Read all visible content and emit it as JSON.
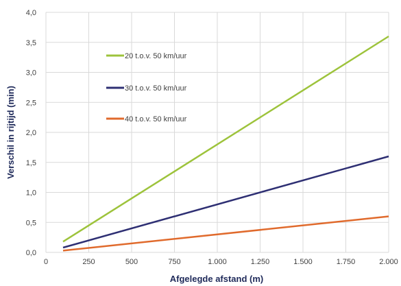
{
  "chart_data": {
    "type": "line",
    "xlabel": "Afgelegde afstand (m)",
    "ylabel": "Verschil in rijtijd  (min)",
    "xlim": [
      0,
      2000
    ],
    "ylim": [
      0,
      4.0
    ],
    "x_ticks": [
      0,
      250,
      500,
      750,
      1000,
      1250,
      1500,
      1750,
      2000
    ],
    "x_tick_labels": [
      "0",
      "250",
      "500",
      "750",
      "1.000",
      "1.250",
      "1.500",
      "1.750",
      "2.000"
    ],
    "y_ticks": [
      0,
      0.5,
      1.0,
      1.5,
      2.0,
      2.5,
      3.0,
      3.5,
      4.0
    ],
    "y_tick_labels": [
      "0,0",
      "0,5",
      "1,0",
      "1,5",
      "2,0",
      "2,5",
      "3,0",
      "3,5",
      "4,0"
    ],
    "grid": true,
    "legend_position": "top-left",
    "series": [
      {
        "name": "20 t.o.v. 50 km/uur",
        "color": "#9dc33b",
        "x": [
          100,
          2000
        ],
        "y": [
          0.18,
          3.6
        ]
      },
      {
        "name": "30 t.o.v. 50 km/uur",
        "color": "#2e2f73",
        "x": [
          100,
          2000
        ],
        "y": [
          0.08,
          1.6
        ]
      },
      {
        "name": "40 t.o.v. 50 km/uur",
        "color": "#e06a2c",
        "x": [
          100,
          2000
        ],
        "y": [
          0.03,
          0.6
        ]
      }
    ]
  }
}
